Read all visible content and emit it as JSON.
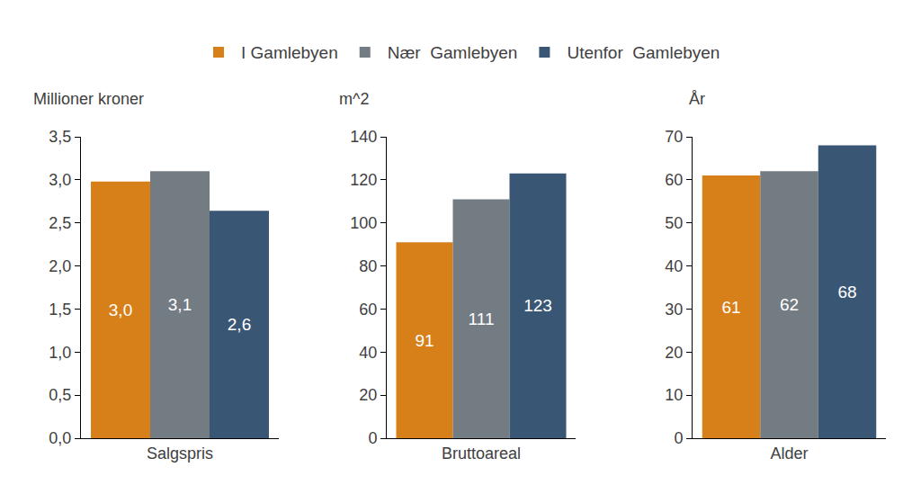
{
  "chart_data": [
    {
      "type": "bar",
      "y_label": "Millioner kroner",
      "categories": [
        "Salgspris"
      ],
      "series": [
        {
          "name": "I Gamlebyen",
          "color": "#d7801a",
          "values": [
            2.98
          ],
          "value_labels": [
            "3,0"
          ]
        },
        {
          "name": "Nær  Gamlebyen",
          "color": "#737b83",
          "values": [
            3.1
          ],
          "value_labels": [
            "3,1"
          ]
        },
        {
          "name": "Utenfor  Gamlebyen",
          "color": "#3a5675",
          "values": [
            2.64
          ],
          "value_labels": [
            "2,6"
          ]
        }
      ],
      "ylim": [
        0,
        3.5
      ],
      "yticks": [
        {
          "value": 0,
          "label": "0,0"
        },
        {
          "value": 0.5,
          "label": "0,5"
        },
        {
          "value": 1,
          "label": "1,0"
        },
        {
          "value": 1.5,
          "label": "1,5"
        },
        {
          "value": 2,
          "label": "2,0"
        },
        {
          "value": 2.5,
          "label": "2,5"
        },
        {
          "value": 3,
          "label": "3,0"
        },
        {
          "value": 3.5,
          "label": "3,5"
        }
      ],
      "grid": false,
      "data_labels": true,
      "legend": "top"
    },
    {
      "type": "bar",
      "y_label": "m^2",
      "categories": [
        "Bruttoareal"
      ],
      "series": [
        {
          "name": "I Gamlebyen",
          "color": "#d7801a",
          "values": [
            91
          ]
        },
        {
          "name": "Nær  Gamlebyen",
          "color": "#737b83",
          "values": [
            111
          ]
        },
        {
          "name": "Utenfor  Gamlebyen",
          "color": "#3a5675",
          "values": [
            123
          ]
        }
      ],
      "ylim": [
        0,
        140
      ],
      "yticks": [
        0,
        20,
        40,
        60,
        80,
        100,
        120,
        140
      ],
      "grid": false,
      "data_labels": true
    },
    {
      "type": "bar",
      "y_label": "År",
      "categories": [
        "Alder"
      ],
      "series": [
        {
          "name": "I Gamlebyen",
          "color": "#d7801a",
          "values": [
            61
          ]
        },
        {
          "name": "Nær  Gamlebyen",
          "color": "#737b83",
          "values": [
            62
          ]
        },
        {
          "name": "Utenfor  Gamlebyen",
          "color": "#3a5675",
          "values": [
            68
          ]
        }
      ],
      "ylim": [
        0,
        70
      ],
      "yticks": [
        0,
        10,
        20,
        30,
        40,
        50,
        60,
        70
      ],
      "grid": false,
      "data_labels": true
    }
  ]
}
